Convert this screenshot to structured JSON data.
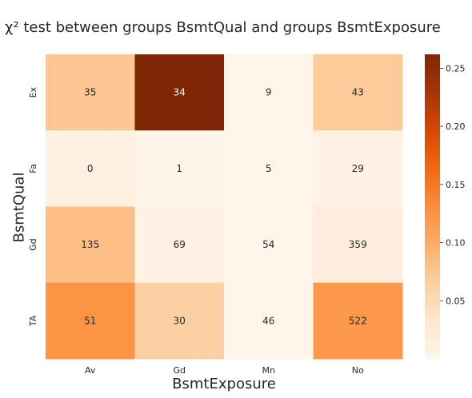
{
  "chart_data": {
    "type": "heatmap",
    "title": "χ² test between groups BsmtQual and groups BsmtExposure",
    "xlabel": "BsmtExposure",
    "ylabel": "BsmtQual",
    "x_categories": [
      "Av",
      "Gd",
      "Mn",
      "No"
    ],
    "y_categories": [
      "Ex",
      "Fa",
      "Gd",
      "TA"
    ],
    "annotations": [
      [
        35,
        34,
        9,
        43
      ],
      [
        0,
        1,
        5,
        29
      ],
      [
        135,
        69,
        54,
        359
      ],
      [
        51,
        30,
        46,
        522
      ]
    ],
    "color_values": [
      [
        0.075,
        0.262,
        0.001,
        0.07
      ],
      [
        0.01,
        0.003,
        0.001,
        0.008
      ],
      [
        0.082,
        0.008,
        0.001,
        0.015
      ],
      [
        0.125,
        0.065,
        0.001,
        0.12
      ]
    ],
    "colorbar": {
      "ticks": [
        0.05,
        0.1,
        0.15,
        0.2,
        0.25
      ],
      "tick_labels": [
        "0.05",
        "0.10",
        "0.15",
        "0.20",
        "0.25"
      ],
      "vmin": 0.0,
      "vmax": 0.262
    },
    "colormap": "Oranges"
  }
}
